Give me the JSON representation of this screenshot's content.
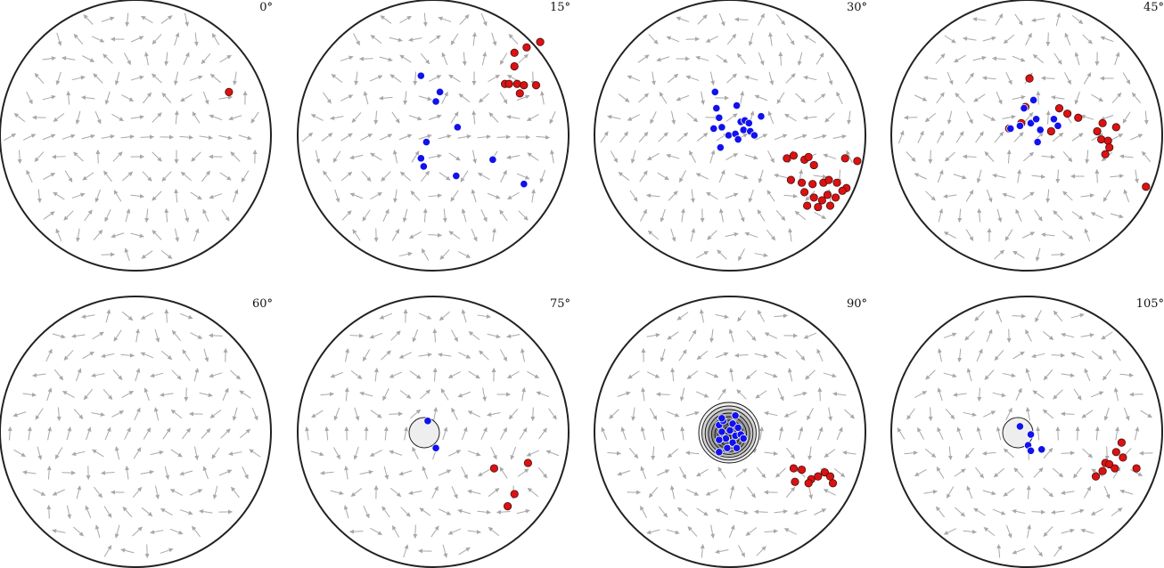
{
  "chart_data": [
    {
      "type": "scatter",
      "angle_label": "0°",
      "series": [
        {
          "color": "#dd1111",
          "points": [
            [
              0.69,
              0.32
            ]
          ]
        },
        {
          "color": "#1111ee",
          "points": []
        }
      ],
      "contour_rings": 0
    },
    {
      "type": "scatter",
      "angle_label": "15°",
      "series": [
        {
          "color": "#dd1111",
          "points": [
            [
              0.53,
              0.38
            ],
            [
              0.56,
              0.38
            ],
            [
              0.62,
              0.38
            ],
            [
              0.67,
              0.37
            ],
            [
              0.64,
              0.31
            ],
            [
              0.76,
              0.37
            ],
            [
              0.6,
              0.51
            ],
            [
              0.6,
              0.61
            ],
            [
              0.69,
              0.65
            ],
            [
              0.79,
              0.69
            ]
          ]
        },
        {
          "color": "#1111ee",
          "points": [
            [
              -0.09,
              0.44
            ],
            [
              0.05,
              0.32
            ],
            [
              0.02,
              0.25
            ],
            [
              0.18,
              0.06
            ],
            [
              -0.05,
              -0.05
            ],
            [
              -0.09,
              -0.17
            ],
            [
              -0.07,
              -0.23
            ],
            [
              0.17,
              -0.3
            ],
            [
              0.44,
              -0.18
            ],
            [
              0.67,
              -0.36
            ]
          ]
        }
      ],
      "contour_rings": 0
    },
    {
      "type": "scatter",
      "angle_label": "30°",
      "series": [
        {
          "color": "#dd1111",
          "points": [
            [
              0.42,
              -0.17
            ],
            [
              0.47,
              -0.15
            ],
            [
              0.55,
              -0.18
            ],
            [
              0.58,
              -0.16
            ],
            [
              0.62,
              -0.22
            ],
            [
              0.45,
              -0.33
            ],
            [
              0.53,
              -0.35
            ],
            [
              0.61,
              -0.36
            ],
            [
              0.69,
              -0.35
            ],
            [
              0.73,
              -0.33
            ],
            [
              0.79,
              -0.35
            ],
            [
              0.86,
              -0.39
            ],
            [
              0.55,
              -0.42
            ],
            [
              0.62,
              -0.46
            ],
            [
              0.68,
              -0.48
            ],
            [
              0.72,
              -0.44
            ],
            [
              0.78,
              -0.46
            ],
            [
              0.83,
              -0.41
            ],
            [
              0.57,
              -0.52
            ],
            [
              0.65,
              -0.53
            ],
            [
              0.74,
              -0.52
            ],
            [
              0.85,
              -0.17
            ],
            [
              0.94,
              -0.19
            ]
          ]
        },
        {
          "color": "#1111ee",
          "points": [
            [
              -0.1,
              0.2
            ],
            [
              -0.08,
              0.13
            ],
            [
              -0.12,
              0.05
            ],
            [
              -0.06,
              0.06
            ],
            [
              -0.01,
              0.0
            ],
            [
              0.04,
              0.01
            ],
            [
              0.08,
              0.1
            ],
            [
              0.11,
              0.11
            ],
            [
              0.14,
              0.09
            ],
            [
              0.1,
              0.04
            ],
            [
              0.15,
              0.03
            ],
            [
              0.18,
              0.0
            ],
            [
              0.06,
              -0.03
            ],
            [
              -0.07,
              -0.09
            ],
            [
              0.23,
              0.14
            ],
            [
              0.05,
              0.22
            ],
            [
              -0.11,
              0.32
            ]
          ]
        }
      ],
      "contour_rings": 0
    },
    {
      "type": "scatter",
      "angle_label": "45°",
      "series": [
        {
          "color": "#dd1111",
          "points": [
            [
              0.52,
              0.03
            ],
            [
              0.56,
              0.09
            ],
            [
              0.38,
              0.13
            ],
            [
              0.3,
              0.16
            ],
            [
              0.24,
              0.2
            ],
            [
              0.18,
              0.03
            ],
            [
              -0.13,
              0.05
            ],
            [
              -0.04,
              0.09
            ],
            [
              -0.01,
              0.21
            ],
            [
              0.02,
              0.42
            ],
            [
              0.66,
              0.06
            ],
            [
              0.55,
              -0.03
            ],
            [
              0.6,
              -0.04
            ],
            [
              0.61,
              -0.09
            ],
            [
              0.58,
              -0.14
            ],
            [
              0.88,
              -0.38
            ]
          ]
        },
        {
          "color": "#1111ee",
          "points": [
            [
              -0.12,
              0.05
            ],
            [
              -0.05,
              0.07
            ],
            [
              0.03,
              0.09
            ],
            [
              0.1,
              0.04
            ],
            [
              0.07,
              0.12
            ],
            [
              0.2,
              0.12
            ],
            [
              0.23,
              0.07
            ],
            [
              -0.02,
              0.2
            ],
            [
              0.05,
              0.26
            ],
            [
              0.08,
              -0.05
            ]
          ]
        }
      ],
      "contour_rings": 0
    },
    {
      "type": "scatter",
      "angle_label": "60°",
      "series": [
        {
          "color": "#dd1111",
          "points": []
        },
        {
          "color": "#1111ee",
          "points": []
        }
      ],
      "contour_rings": 0
    },
    {
      "type": "scatter",
      "angle_label": "75°",
      "series": [
        {
          "color": "#dd1111",
          "points": [
            [
              0.45,
              -0.27
            ],
            [
              0.7,
              -0.23
            ],
            [
              0.6,
              -0.46
            ],
            [
              0.55,
              -0.55
            ]
          ]
        },
        {
          "color": "#1111ee",
          "points": [
            [
              -0.04,
              0.08
            ],
            [
              0.02,
              -0.12
            ]
          ]
        }
      ],
      "contour_rings": 1
    },
    {
      "type": "scatter",
      "angle_label": "90°",
      "series": [
        {
          "color": "#dd1111",
          "points": [
            [
              0.47,
              -0.27
            ],
            [
              0.53,
              -0.28
            ],
            [
              0.6,
              -0.35
            ],
            [
              0.65,
              -0.33
            ],
            [
              0.7,
              -0.3
            ],
            [
              0.74,
              -0.33
            ],
            [
              0.76,
              -0.38
            ],
            [
              0.48,
              -0.37
            ],
            [
              0.58,
              -0.38
            ]
          ]
        },
        {
          "color": "#1111ee",
          "points": [
            [
              -0.08,
              0.05
            ],
            [
              -0.05,
              0.08
            ],
            [
              -0.06,
              0.0
            ],
            [
              -0.03,
              -0.05
            ],
            [
              0.0,
              0.01
            ],
            [
              0.02,
              0.06
            ],
            [
              0.04,
              -0.03
            ],
            [
              0.06,
              0.03
            ],
            [
              0.08,
              -0.02
            ],
            [
              0.02,
              -0.08
            ],
            [
              -0.08,
              -0.06
            ],
            [
              -0.02,
              -0.12
            ],
            [
              0.05,
              -0.12
            ],
            [
              0.1,
              -0.05
            ],
            [
              -0.06,
              0.1
            ],
            [
              0.04,
              0.12
            ],
            [
              -0.08,
              -0.15
            ]
          ]
        }
      ],
      "contour_rings": 9
    },
    {
      "type": "scatter",
      "angle_label": "105°",
      "series": [
        {
          "color": "#dd1111",
          "points": [
            [
              0.51,
              -0.33
            ],
            [
              0.56,
              -0.29
            ],
            [
              0.58,
              -0.23
            ],
            [
              0.61,
              -0.24
            ],
            [
              0.65,
              -0.27
            ],
            [
              0.71,
              -0.19
            ],
            [
              0.66,
              -0.15
            ],
            [
              0.7,
              -0.08
            ],
            [
              0.81,
              -0.27
            ]
          ]
        },
        {
          "color": "#1111ee",
          "points": [
            [
              -0.05,
              0.04
            ],
            [
              0.03,
              -0.02
            ],
            [
              0.01,
              -0.1
            ],
            [
              0.03,
              -0.14
            ],
            [
              0.11,
              -0.13
            ]
          ]
        }
      ],
      "contour_rings": 1
    }
  ]
}
